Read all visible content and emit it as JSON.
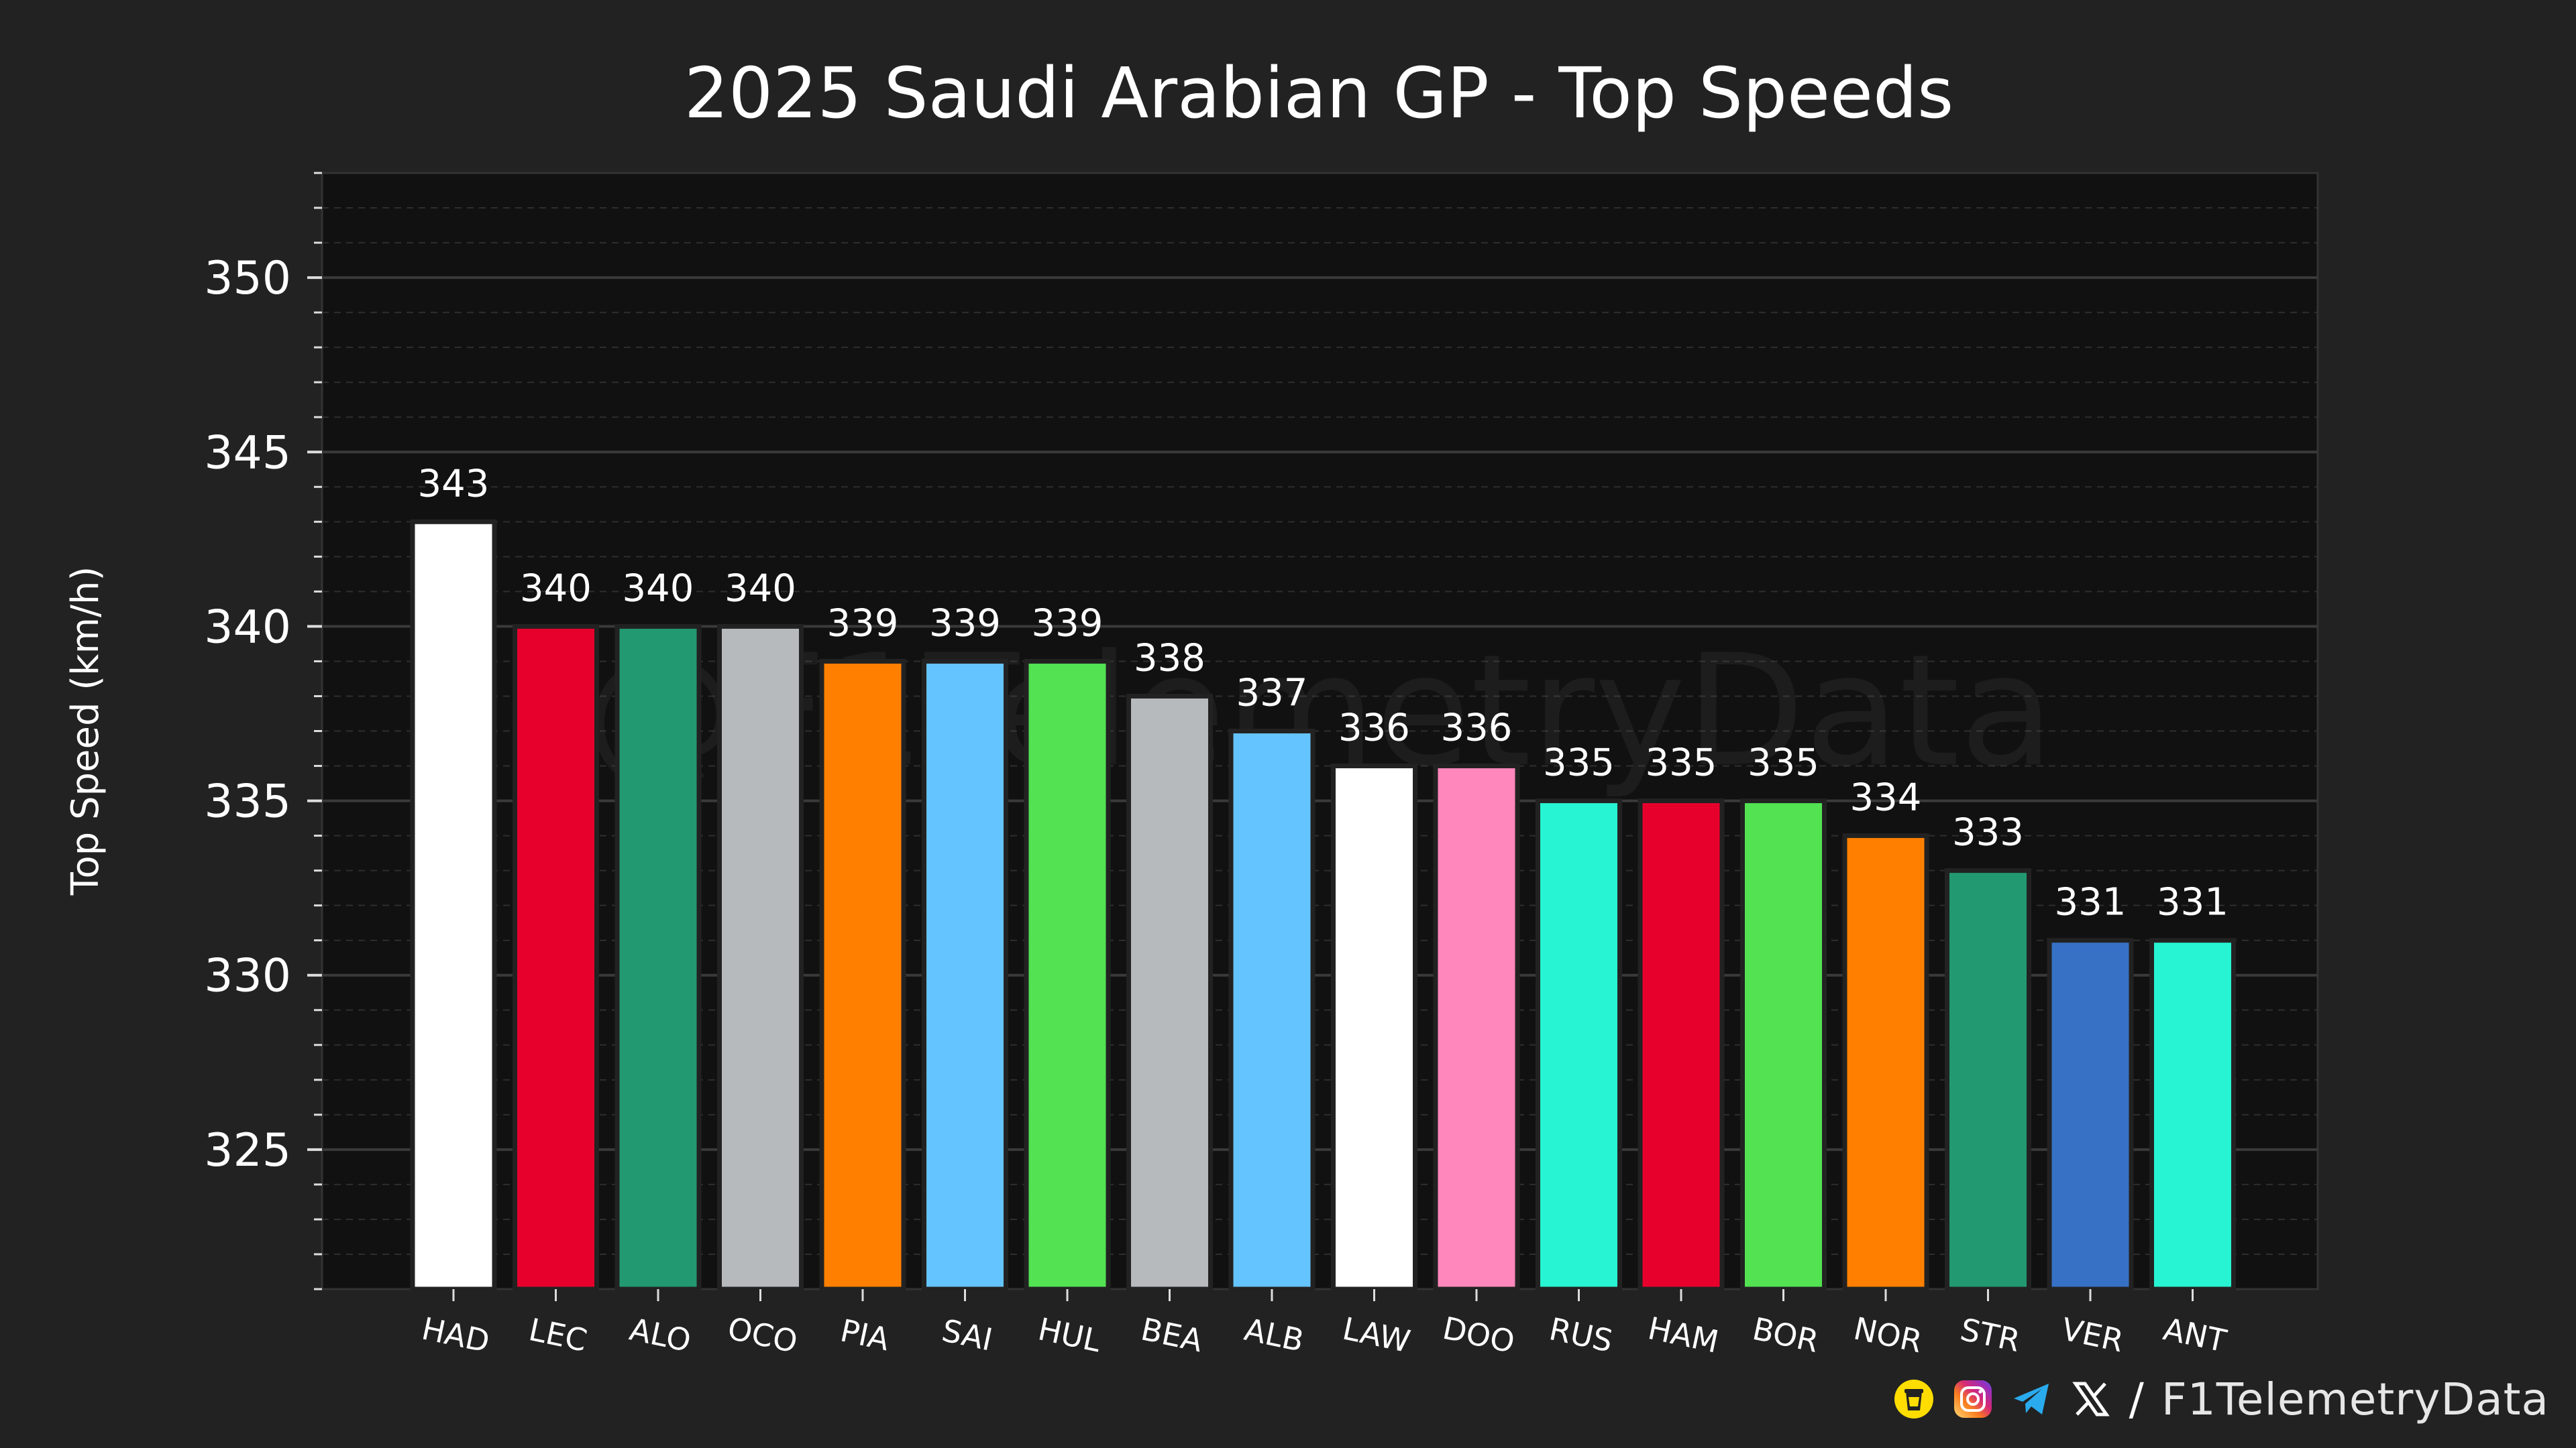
{
  "chart_data": {
    "type": "bar",
    "title": "2025 Saudi Arabian GP - Top Speeds",
    "xlabel": "",
    "ylabel": "Top Speed (km/h)",
    "ylim": [
      321,
      353
    ],
    "yticks": [
      325,
      330,
      335,
      340,
      345,
      350
    ],
    "categories": [
      "HAD",
      "LEC",
      "ALO",
      "OCO",
      "PIA",
      "SAI",
      "HUL",
      "BEA",
      "ALB",
      "LAW",
      "DOO",
      "RUS",
      "HAM",
      "BOR",
      "NOR",
      "STR",
      "VER",
      "ANT"
    ],
    "values": [
      343,
      340,
      340,
      340,
      339,
      339,
      339,
      338,
      337,
      336,
      336,
      335,
      335,
      335,
      334,
      333,
      331,
      331
    ],
    "value_labels": [
      "343",
      "340",
      "340",
      "340",
      "339",
      "339",
      "339",
      "338",
      "337",
      "336",
      "336",
      "335",
      "335",
      "335",
      "334",
      "333",
      "331",
      "331"
    ],
    "colors": [
      "#FFFFFF",
      "#E8002D",
      "#229971",
      "#B6BABD",
      "#FF8000",
      "#64C4FF",
      "#52E252",
      "#B6BABD",
      "#64C4FF",
      "#FFFFFF",
      "#FF87BC",
      "#27F4D2",
      "#E8002D",
      "#52E252",
      "#FF8000",
      "#229971",
      "#3671C6",
      "#27F4D2"
    ],
    "grid": true,
    "watermark": "@F1TelemetryData"
  },
  "footer": {
    "separator": "/",
    "handle": "F1TelemetryData",
    "icons": [
      "buymeacoffee-icon",
      "instagram-icon",
      "telegram-icon",
      "x-icon"
    ]
  },
  "theme": {
    "background": "#222222",
    "plot_background": "#111111",
    "grid_major": "#3a3a3a",
    "grid_minor": "#2e2e2e"
  }
}
